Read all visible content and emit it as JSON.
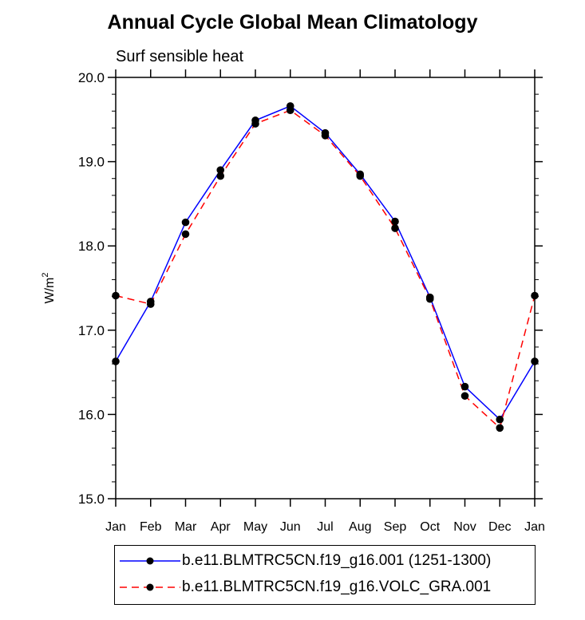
{
  "chart_data": {
    "type": "line",
    "title": "Annual Cycle Global Mean Climatology",
    "subtitle": "Surf sensible heat",
    "xlabel": "",
    "ylabel": "W/m",
    "ylabel_superscript": "2",
    "categories": [
      "Jan",
      "Feb",
      "Mar",
      "Apr",
      "May",
      "Jun",
      "Jul",
      "Aug",
      "Sep",
      "Oct",
      "Nov",
      "Dec",
      "Jan"
    ],
    "ylim": [
      15.0,
      20.0
    ],
    "yticks": [
      "15.0",
      "16.0",
      "17.0",
      "18.0",
      "19.0",
      "20.0"
    ],
    "series": [
      {
        "name": "b.e11.BLMTRC5CN.f19_g16.001 (1251-1300)",
        "color": "#0000ff",
        "dash": "solid",
        "values": [
          16.63,
          17.34,
          18.28,
          18.9,
          19.49,
          19.66,
          19.34,
          18.85,
          18.29,
          17.39,
          16.33,
          15.94,
          16.63
        ]
      },
      {
        "name": "b.e11.BLMTRC5CN.f19_g16.VOLC_GRA.001",
        "color": "#ff0000",
        "dash": "dashed",
        "values": [
          17.41,
          17.31,
          18.14,
          18.83,
          19.45,
          19.61,
          19.31,
          18.83,
          18.21,
          17.37,
          16.22,
          15.84,
          17.41
        ]
      }
    ],
    "marker_color": "#000000"
  }
}
